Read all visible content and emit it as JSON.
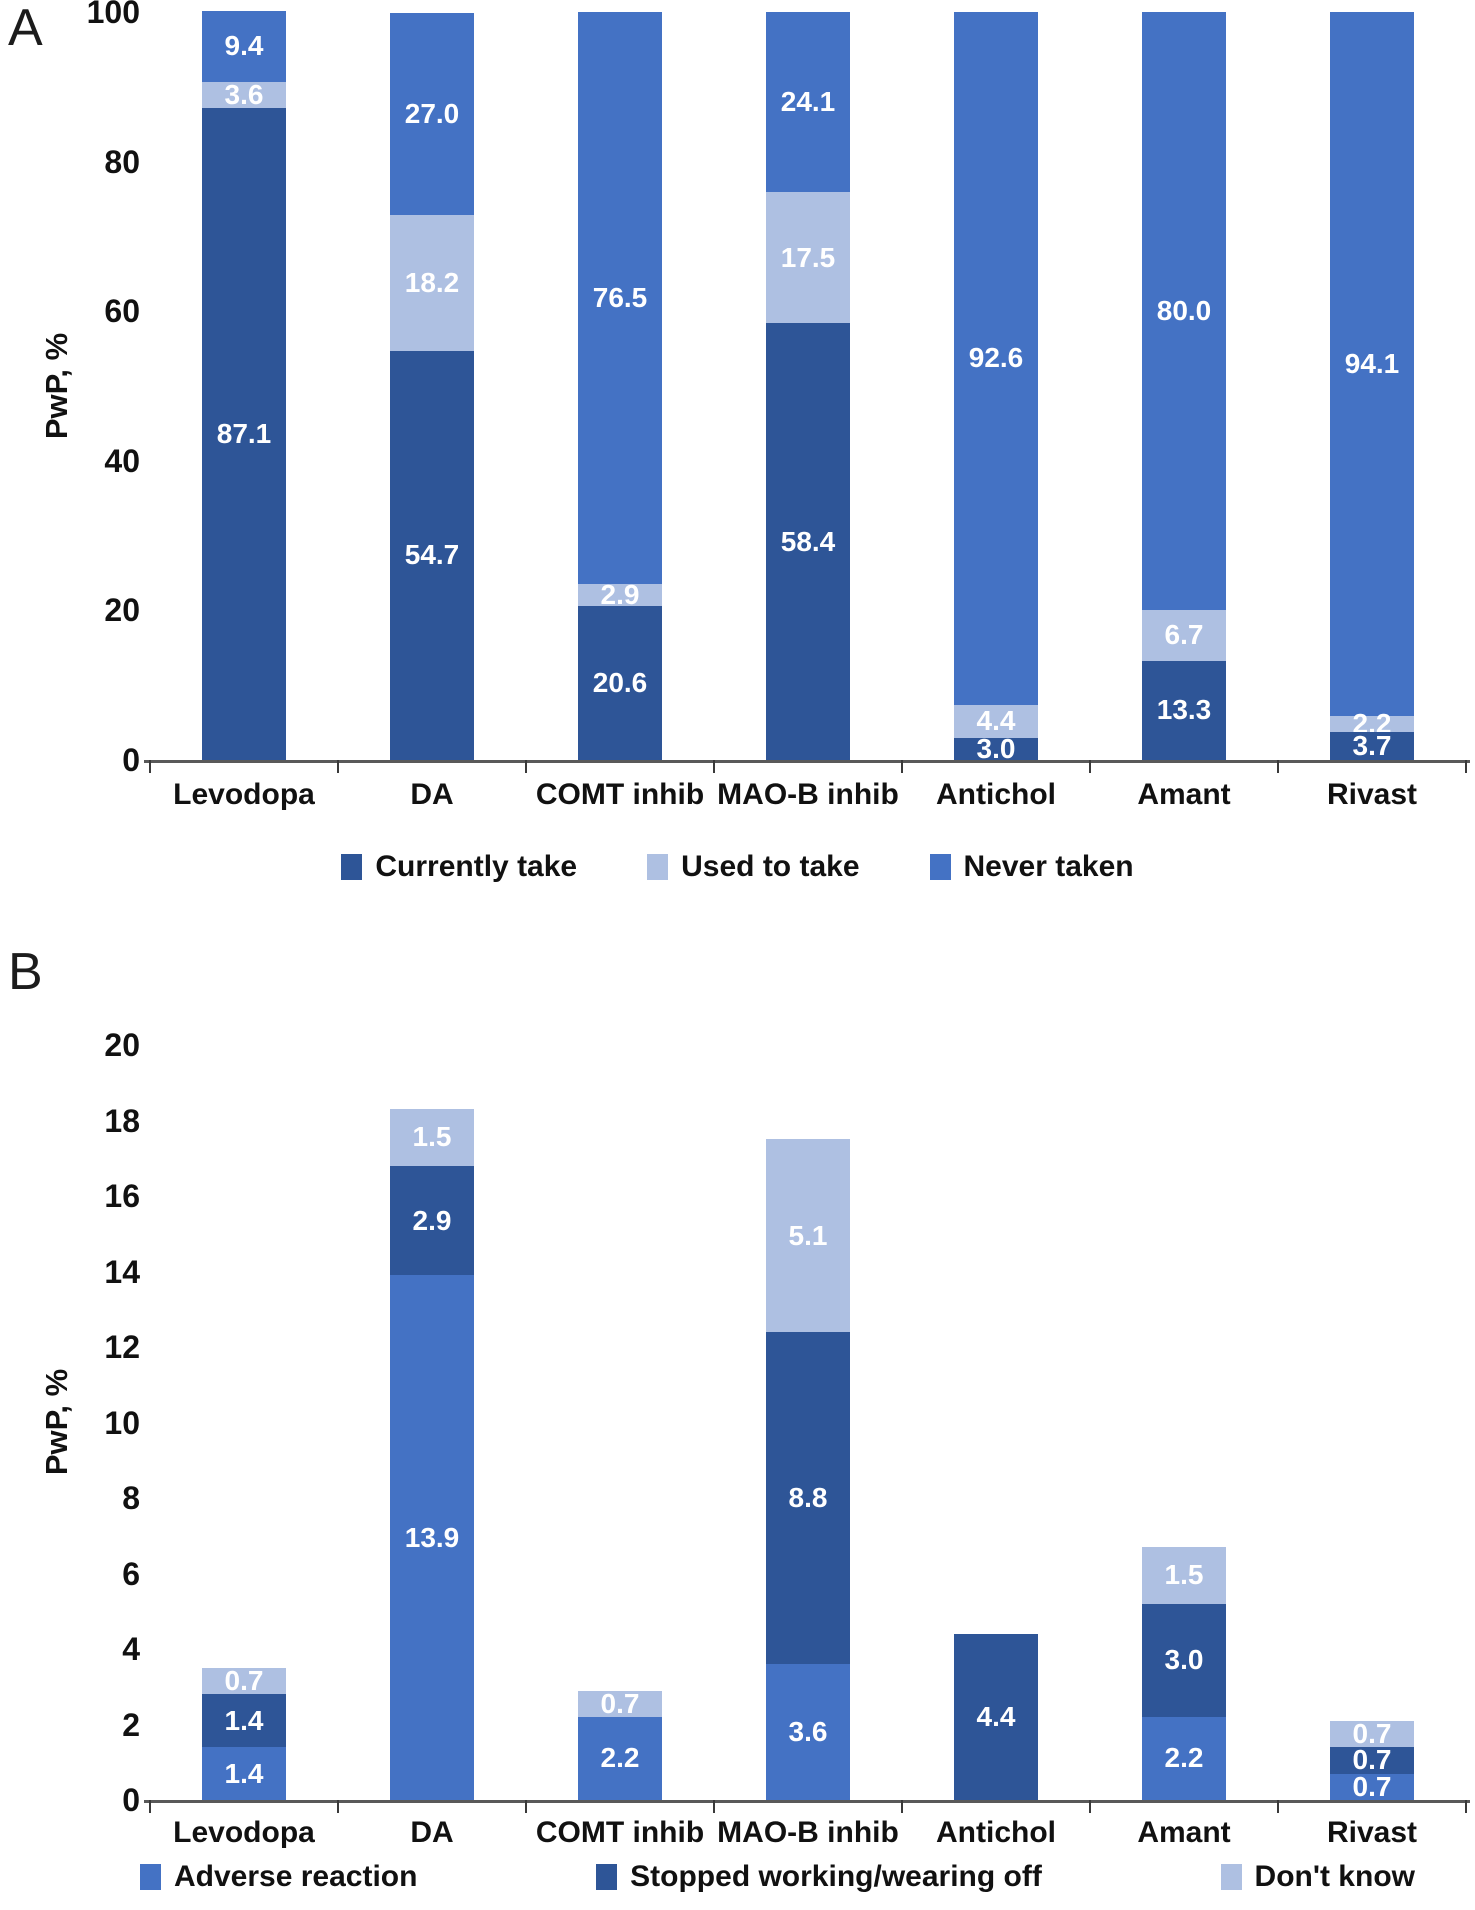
{
  "colors": {
    "dark": "#2e5597",
    "medium": "#4472c4",
    "light": "#aec0e2"
  },
  "chart_data": [
    {
      "type": "stacked-bar",
      "panel": "A",
      "ylabel": "PwP, %",
      "ylim": [
        0,
        100
      ],
      "ytick_step": 20,
      "grid": "off",
      "legend_position": "bottom-center",
      "categories": [
        "Levodopa",
        "DA",
        "COMT inhib",
        "MAO-B inhib",
        "Antichol",
        "Amant",
        "Rivast"
      ],
      "series": [
        {
          "name": "Currently take",
          "color": "dark",
          "values": [
            "87.1",
            "54.7",
            "20.6",
            "58.4",
            "3.0",
            "13.3",
            "3.7"
          ]
        },
        {
          "name": "Used to take",
          "color": "light",
          "values": [
            "3.6",
            "18.2",
            "2.9",
            "17.5",
            "4.4",
            "6.7",
            "2.2"
          ]
        },
        {
          "name": "Never taken",
          "color": "medium",
          "values": [
            "9.4",
            "27.0",
            "76.5",
            "24.1",
            "92.6",
            "80.0",
            "94.1"
          ]
        }
      ]
    },
    {
      "type": "stacked-bar",
      "panel": "B",
      "ylabel": "PwP, %",
      "ylim": [
        0,
        20
      ],
      "ytick_step": 2,
      "grid": "off",
      "legend_position": "bottom-spread",
      "categories": [
        "Levodopa",
        "DA",
        "COMT inhib",
        "MAO-B inhib",
        "Antichol",
        "Amant",
        "Rivast"
      ],
      "series": [
        {
          "name": "Adverse reaction",
          "color": "medium",
          "values": [
            "1.4",
            "13.9",
            "2.2",
            "3.6",
            "",
            "2.2",
            "0.7"
          ]
        },
        {
          "name": "Stopped working/wearing off",
          "color": "dark",
          "values": [
            "1.4",
            "2.9",
            "",
            "8.8",
            "4.4",
            "3.0",
            "0.7"
          ]
        },
        {
          "name": "Don't know",
          "color": "light",
          "values": [
            "0.7",
            "1.5",
            "0.7",
            "5.1",
            "",
            "1.5",
            "0.7"
          ]
        }
      ]
    }
  ]
}
